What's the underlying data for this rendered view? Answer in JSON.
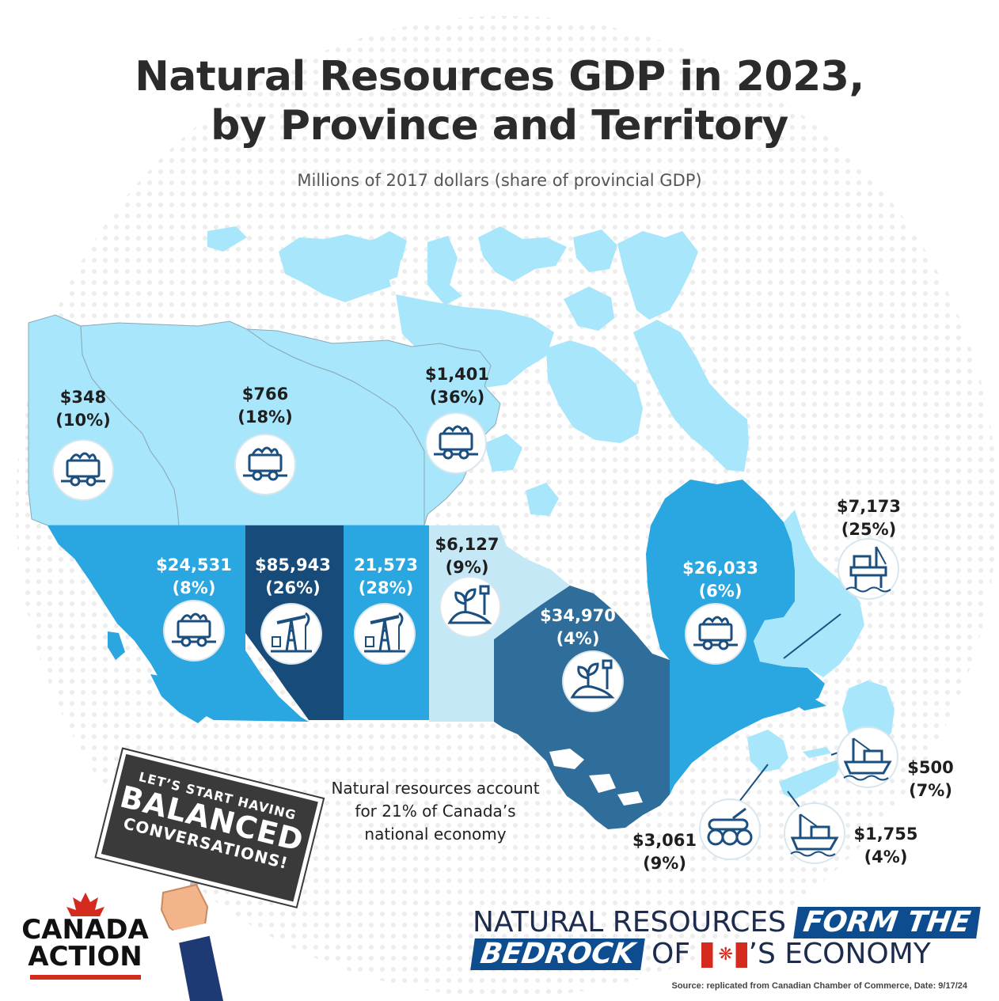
{
  "title_line1": "Natural Resources GDP in 2023,",
  "title_line2": "by Province and Territory",
  "subtitle": "Millions of 2017 dollars (share of provincial GDP)",
  "colors": {
    "very_light": "#a8e6fb",
    "pale": "#c4e8f5",
    "mid": "#2aa6e0",
    "ontario": "#2f6e9a",
    "alberta": "#174c7a",
    "icon_stroke": "#1b4f80"
  },
  "regions": [
    {
      "name": "Yukon",
      "value": "$348",
      "share": "(10%)",
      "icon": "mine-cart-icon",
      "label_color": "dark"
    },
    {
      "name": "Northwest Territories",
      "value": "$766",
      "share": "(18%)",
      "icon": "mine-cart-icon",
      "label_color": "dark"
    },
    {
      "name": "Nunavut",
      "value": "$1,401",
      "share": "(36%)",
      "icon": "mine-cart-icon",
      "label_color": "dark"
    },
    {
      "name": "British Columbia",
      "value": "$24,531",
      "share": "(8%)",
      "icon": "mine-cart-icon",
      "label_color": "light"
    },
    {
      "name": "Alberta",
      "value": "$85,943",
      "share": "(26%)",
      "icon": "oil-pump-icon",
      "label_color": "light"
    },
    {
      "name": "Saskatchewan",
      "value": "21,573",
      "share": "(28%)",
      "icon": "oil-pump-icon",
      "label_color": "light"
    },
    {
      "name": "Manitoba",
      "value": "$6,127",
      "share": "(9%)",
      "icon": "plant-shovel-icon",
      "label_color": "dark"
    },
    {
      "name": "Ontario",
      "value": "$34,970",
      "share": "(4%)",
      "icon": "plant-shovel-icon",
      "label_color": "light"
    },
    {
      "name": "Quebec",
      "value": "$26,033",
      "share": "(6%)",
      "icon": "mine-cart-icon",
      "label_color": "light"
    },
    {
      "name": "Newfoundland and Labrador",
      "value": "$7,173",
      "share": "(25%)",
      "icon": "oil-platform-icon",
      "label_color": "dark"
    },
    {
      "name": "Prince Edward Island",
      "value": "$500",
      "share": "(7%)",
      "icon": "fishing-boat-icon",
      "label_color": "dark"
    },
    {
      "name": "Nova Scotia",
      "value": "$1,755",
      "share": "(4%)",
      "icon": "fishing-boat-icon",
      "label_color": "dark"
    },
    {
      "name": "New Brunswick",
      "value": "$3,061",
      "share": "(9%)",
      "icon": "logs-icon",
      "label_color": "dark"
    }
  ],
  "note_lines": [
    "Natural resources account",
    "for 21% of Canada’s",
    "national economy"
  ],
  "sign_lines": [
    "LET’S START HAVING",
    "BALANCED",
    "CONVERSATIONS!"
  ],
  "brand_lines": [
    "CANADA",
    "ACTION"
  ],
  "tagline": {
    "part1": "NATURAL RESOURCES",
    "part2": "FORM THE",
    "part3": "BEDROCK",
    "part4": "OF",
    "part5": "’S ECONOMY"
  },
  "source": "Source: replicated  from Canadian Chamber of Commerce, Date: 9/17/24"
}
